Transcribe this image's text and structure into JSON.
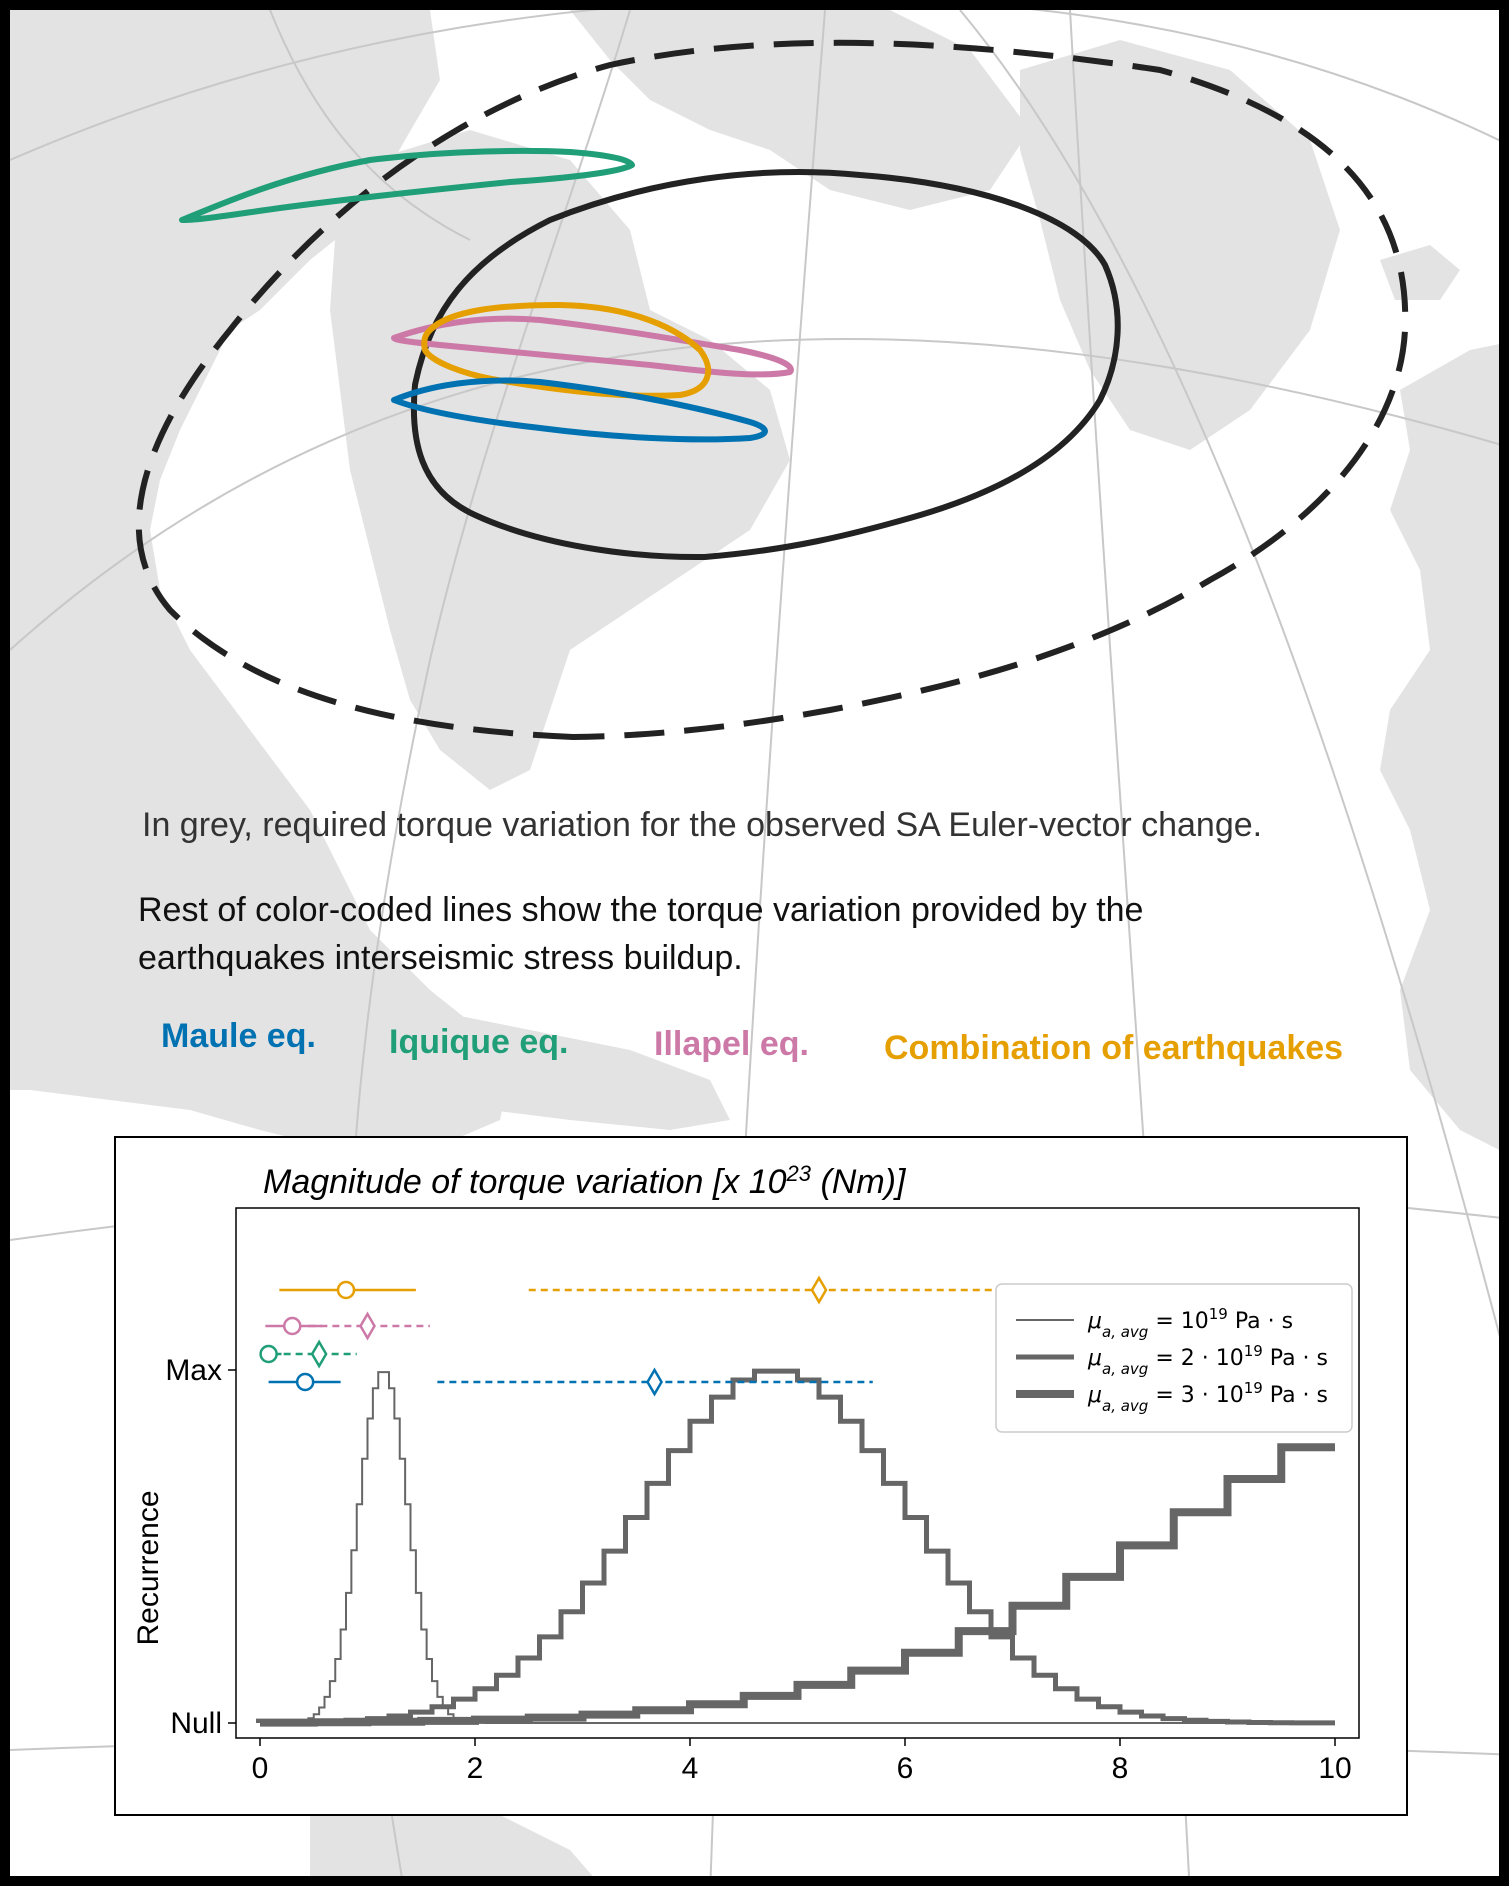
{
  "captions": {
    "line1": "In grey, required torque variation for the observed SA Euler-vector change.",
    "line2": "Rest of color-coded lines show the torque variation provided by the earthquakes interseismic stress buildup."
  },
  "legend_eq": [
    {
      "label": "Maule eq.",
      "color": "#0072b2"
    },
    {
      "label": "Iquique eq.",
      "color": "#1f9e77"
    },
    {
      "label": "Illapel eq.",
      "color": "#cc79a7"
    },
    {
      "label": "Combination of earthquakes",
      "color": "#e69f00"
    }
  ],
  "colors": {
    "hist": "#666666",
    "map_land": "#e3e3e3",
    "graticule": "#c8c8c8",
    "ellipse": "#222222"
  },
  "chart_data": {
    "type": "step-histogram",
    "title_text": "Magnitude of torque variation [x 10",
    "title_exp": "23",
    "title_unit": " (Nm)]",
    "ylabel": "Recurrence",
    "yticks": [
      "Null",
      "Max"
    ],
    "xlim": [
      0,
      10
    ],
    "xticks": [
      "0",
      "2",
      "4",
      "6",
      "8",
      "10"
    ],
    "series": [
      {
        "name": "μa,avg = 10^19 Pa·s",
        "legend_base": "μ",
        "legend_sub": "a, avg",
        "legend_rest": " = 10",
        "legend_sup": "19",
        "legend_tail": " Pa · s",
        "stroke_width": 2,
        "dist": {
          "mean": 1.15,
          "sd": 0.23,
          "peak": 1.0
        },
        "bin_width": 0.05
      },
      {
        "name": "μa,avg = 2·10^19 Pa·s",
        "legend_base": "μ",
        "legend_sub": "a, avg",
        "legend_rest": " = 2 · 10",
        "legend_sup": "19",
        "legend_tail": " Pa · s",
        "stroke_width": 5,
        "dist": {
          "mean": 4.8,
          "sd": 1.25,
          "peak": 1.0
        },
        "bin_width": 0.2
      },
      {
        "name": "μa,avg = 3·10^19 Pa·s",
        "legend_base": "μ",
        "legend_sub": "a, avg",
        "legend_rest": " = 3 · 10",
        "legend_sup": "19",
        "legend_tail": " Pa · s",
        "stroke_width": 8,
        "dist": {
          "mean": 12.0,
          "sd": 3.2,
          "peak": 1.0
        },
        "bin_width": 0.5
      }
    ],
    "errorbars": [
      {
        "name": "Combination of earthquakes",
        "color": "#e69f00",
        "solid": {
          "center": 0.8,
          "lo": 0.18,
          "hi": 1.45
        },
        "dashed": {
          "center": 5.2,
          "lo": 2.5,
          "hi": 7.85
        }
      },
      {
        "name": "Illapel eq.",
        "color": "#cc79a7",
        "solid": {
          "center": 0.3,
          "lo": 0.05,
          "hi": 0.58
        },
        "dashed": {
          "center": 1.0,
          "lo": 0.45,
          "hi": 1.58
        }
      },
      {
        "name": "Iquique eq.",
        "color": "#1f9e77",
        "solid": {
          "center": 0.08,
          "lo": 0.0,
          "hi": 0.2
        },
        "dashed": {
          "center": 0.55,
          "lo": 0.22,
          "hi": 0.9
        }
      },
      {
        "name": "Maule eq.",
        "color": "#0072b2",
        "solid": {
          "center": 0.42,
          "lo": 0.08,
          "hi": 0.75
        },
        "dashed": {
          "center": 3.67,
          "lo": 1.65,
          "hi": 5.7
        }
      }
    ]
  }
}
